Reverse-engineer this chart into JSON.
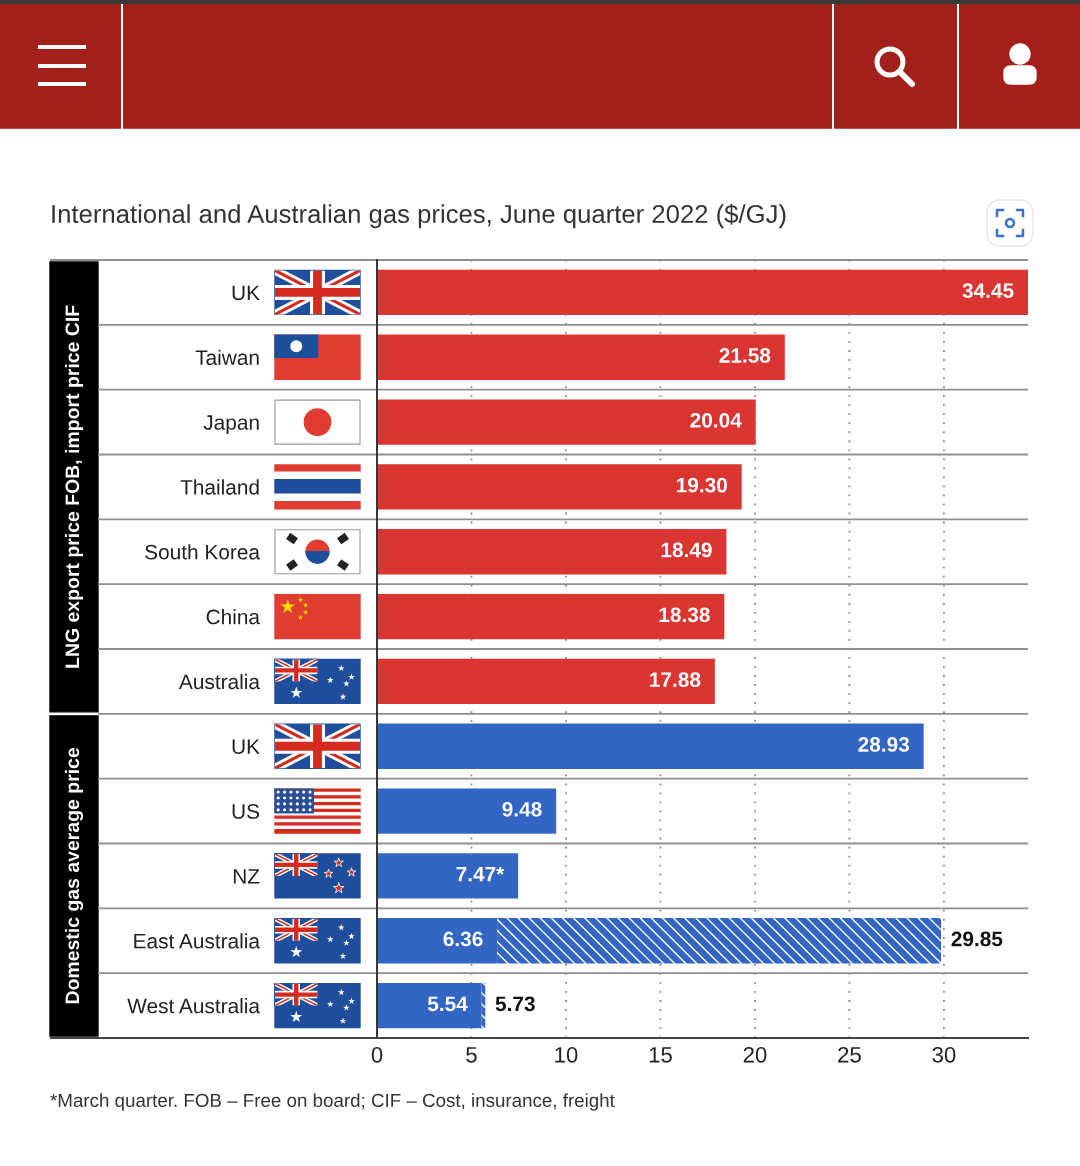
{
  "chart_data": {
    "type": "bar",
    "orientation": "horizontal",
    "stacked": true,
    "title": "International and Australian gas prices, June quarter 2022 ($/GJ)",
    "categories": [
      "UK",
      "Taiwan",
      "Japan",
      "Thailand",
      "South Korea",
      "China",
      "Australia",
      "UK",
      "US",
      "NZ",
      "East Australia",
      "West Australia"
    ],
    "series": [
      {
        "colors": [
          "#db3532",
          "#db3532",
          "#db3532",
          "#db3532",
          "#db3532",
          "#db3532",
          "#db3532",
          "#3366c4",
          "#3366c4",
          "#3366c4",
          "#3366c4",
          "#3366c4"
        ],
        "values": [
          34.45,
          21.58,
          20.04,
          19.3,
          18.49,
          18.38,
          17.88,
          28.93,
          9.48,
          7.47,
          6.36,
          5.54
        ],
        "value_labels": [
          "34.45",
          "21.58",
          "20.04",
          "19.30",
          "18.49",
          "18.38",
          "17.88",
          "28.93",
          "9.48",
          "7.47*",
          "6.36",
          "5.54"
        ]
      },
      {
        "color": "#3366c4",
        "values": [
          null,
          null,
          null,
          null,
          null,
          null,
          null,
          null,
          null,
          null,
          23.49,
          0.19
        ]
      }
    ],
    "totals": [
      null,
      null,
      null,
      null,
      null,
      null,
      null,
      null,
      null,
      null,
      "29.85",
      "5.73"
    ],
    "xlim": [
      0,
      34.45
    ],
    "xticks": [
      0,
      5,
      10,
      15,
      20,
      25,
      30
    ],
    "grid": true,
    "annotations": [
      "LNG export price FOB, import price CIF",
      "Domestic gas average price",
      "*March quarter. FOB – Free on board; CIF – Cost, insurance, freight"
    ]
  }
}
